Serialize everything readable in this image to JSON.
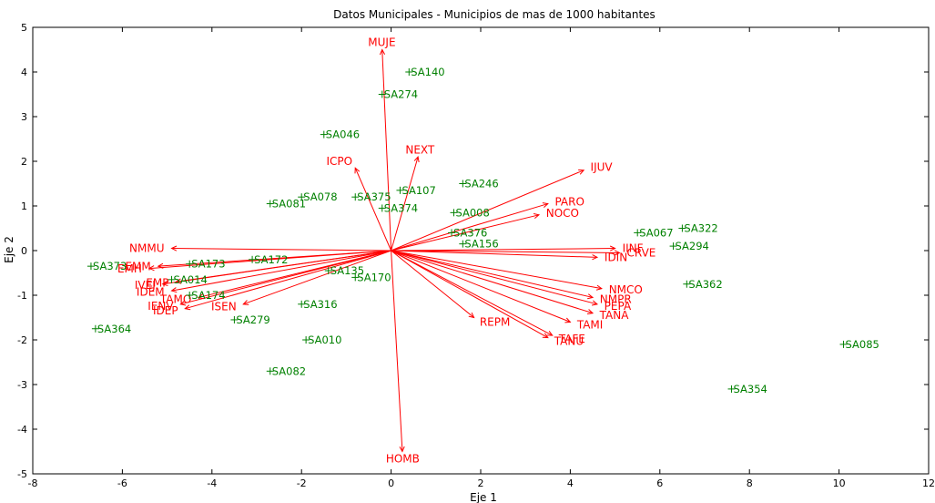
{
  "chart_data": {
    "type": "scatter",
    "title": "Datos Municipales - Municipios de mas de 1000 habitantes",
    "xlabel": "Eje 1",
    "ylabel": "Eje 2",
    "xlim": [
      -8,
      12
    ],
    "ylim": [
      -5,
      5
    ],
    "xticks": [
      -8,
      -6,
      -4,
      -2,
      0,
      2,
      4,
      6,
      8,
      10,
      12
    ],
    "yticks": [
      -5,
      -4,
      -3,
      -2,
      -1,
      0,
      1,
      2,
      3,
      4,
      5
    ],
    "colors": {
      "variables": "#ff0000",
      "observations": "#008000",
      "axes": "#000000"
    },
    "variables": [
      {
        "name": "MUJE",
        "x": -0.2,
        "y": 4.5
      },
      {
        "name": "HOMB",
        "x": 0.25,
        "y": -4.5
      },
      {
        "name": "NEXT",
        "x": 0.6,
        "y": 2.1
      },
      {
        "name": "ICPO",
        "x": -0.8,
        "y": 1.85
      },
      {
        "name": "IJUV",
        "x": 4.3,
        "y": 1.8
      },
      {
        "name": "PARO",
        "x": 3.5,
        "y": 1.05
      },
      {
        "name": "NOCO",
        "x": 3.3,
        "y": 0.8
      },
      {
        "name": "IINF",
        "x": 5.0,
        "y": 0.05
      },
      {
        "name": "CRVE",
        "x": 5.1,
        "y": -0.05
      },
      {
        "name": "IDIN",
        "x": 4.6,
        "y": -0.15
      },
      {
        "name": "NMCO",
        "x": 4.7,
        "y": -0.85
      },
      {
        "name": "NMPR",
        "x": 4.5,
        "y": -1.05
      },
      {
        "name": "PEPA",
        "x": 4.6,
        "y": -1.2
      },
      {
        "name": "TANA",
        "x": 4.5,
        "y": -1.4
      },
      {
        "name": "TAMI",
        "x": 4.0,
        "y": -1.6
      },
      {
        "name": "TAFE",
        "x": 3.6,
        "y": -1.9
      },
      {
        "name": "TANU",
        "x": 3.5,
        "y": -1.95
      },
      {
        "name": "REPM",
        "x": 1.85,
        "y": -1.5
      },
      {
        "name": "NMMU",
        "x": -4.9,
        "y": 0.05
      },
      {
        "name": "EMM",
        "x": -5.2,
        "y": -0.35
      },
      {
        "name": "EMH",
        "x": -5.4,
        "y": -0.4
      },
      {
        "name": "EMP",
        "x": -4.8,
        "y": -0.7
      },
      {
        "name": "IVEJ",
        "x": -5.1,
        "y": -0.75
      },
      {
        "name": "IDEM",
        "x": -4.9,
        "y": -0.9
      },
      {
        "name": "TAMO",
        "x": -4.3,
        "y": -1.05
      },
      {
        "name": "IENV",
        "x": -4.7,
        "y": -1.2
      },
      {
        "name": "IDEP",
        "x": -4.6,
        "y": -1.3
      },
      {
        "name": "ISEN",
        "x": -3.3,
        "y": -1.2
      }
    ],
    "observations": [
      {
        "name": "SA140",
        "x": 0.4,
        "y": 4.0
      },
      {
        "name": "SA274",
        "x": -0.2,
        "y": 3.5
      },
      {
        "name": "SA046",
        "x": -1.5,
        "y": 2.6
      },
      {
        "name": "SA246",
        "x": 1.6,
        "y": 1.5
      },
      {
        "name": "SA078",
        "x": -2.0,
        "y": 1.2
      },
      {
        "name": "SA107",
        "x": 0.2,
        "y": 1.35
      },
      {
        "name": "SA375",
        "x": -0.8,
        "y": 1.2
      },
      {
        "name": "SA081",
        "x": -2.7,
        "y": 1.05
      },
      {
        "name": "SA374",
        "x": -0.2,
        "y": 0.95
      },
      {
        "name": "SA008",
        "x": 1.4,
        "y": 0.85
      },
      {
        "name": "SA376",
        "x": 1.35,
        "y": 0.4
      },
      {
        "name": "SA156",
        "x": 1.6,
        "y": 0.15
      },
      {
        "name": "SA067",
        "x": 5.5,
        "y": 0.4
      },
      {
        "name": "SA322",
        "x": 6.5,
        "y": 0.5
      },
      {
        "name": "SA294",
        "x": 6.3,
        "y": 0.1
      },
      {
        "name": "SA172",
        "x": -3.1,
        "y": -0.2
      },
      {
        "name": "SA173",
        "x": -4.5,
        "y": -0.3
      },
      {
        "name": "SA373",
        "x": -6.7,
        "y": -0.35
      },
      {
        "name": "SA014",
        "x": -4.9,
        "y": -0.65
      },
      {
        "name": "SA135",
        "x": -1.4,
        "y": -0.45
      },
      {
        "name": "SA170",
        "x": -0.8,
        "y": -0.6
      },
      {
        "name": "SA362",
        "x": 6.6,
        "y": -0.75
      },
      {
        "name": "SA316",
        "x": -2.0,
        "y": -1.2
      },
      {
        "name": "SA174",
        "x": -4.5,
        "y": -1.0
      },
      {
        "name": "SA279",
        "x": -3.5,
        "y": -1.55
      },
      {
        "name": "SA364",
        "x": -6.6,
        "y": -1.75
      },
      {
        "name": "SA010",
        "x": -1.9,
        "y": -2.0
      },
      {
        "name": "SA082",
        "x": -2.7,
        "y": -2.7
      },
      {
        "name": "SA085",
        "x": 10.1,
        "y": -2.1
      },
      {
        "name": "SA354",
        "x": 7.6,
        "y": -3.1
      }
    ]
  }
}
